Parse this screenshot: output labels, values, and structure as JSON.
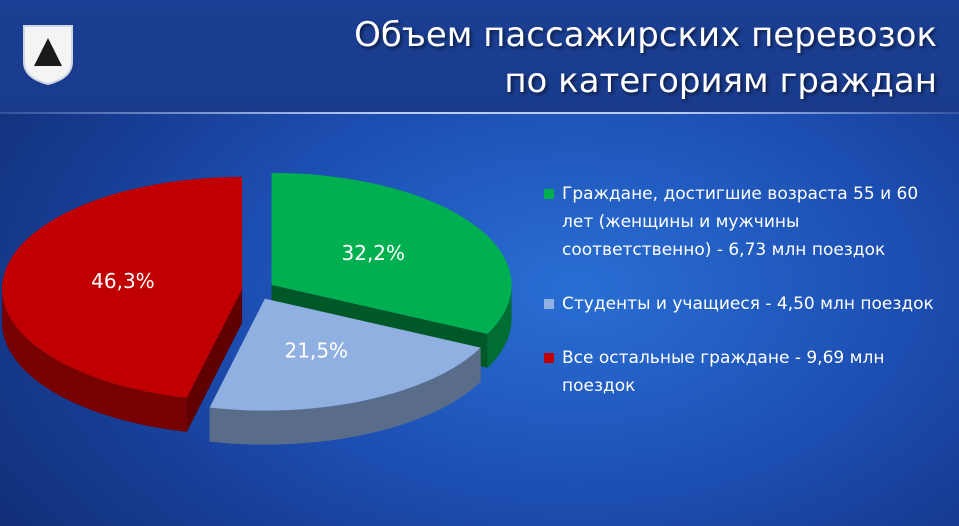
{
  "header": {
    "title_line1": "Объем пассажирских перевозок",
    "title_line2": "по категориям граждан",
    "logo": "shield-emblem-icon"
  },
  "colors": {
    "background": "#1d4fb3",
    "header": "#1b3f94",
    "green": "#00b050",
    "light_blue": "#8fb0e0",
    "red": "#c00000"
  },
  "chart_data": {
    "type": "pie",
    "style": "3d-exploded",
    "slices": [
      {
        "label": "Граждане, достигшие возраста 55 и 60 лет (женщины и мужчины соответственно) - 6,73 млн поездок",
        "value": 32.2,
        "value_label": "32,2%",
        "color": "#00b050"
      },
      {
        "label": "Студенты и учащиеся - 4,50 млн поездок",
        "value": 21.5,
        "value_label": "21,5%",
        "color": "#8fb0e0"
      },
      {
        "label": "Все остальные граждане - 9,69 млн поездок",
        "value": 46.3,
        "value_label": "46,3%",
        "color": "#c00000"
      }
    ],
    "legend_position": "right"
  }
}
